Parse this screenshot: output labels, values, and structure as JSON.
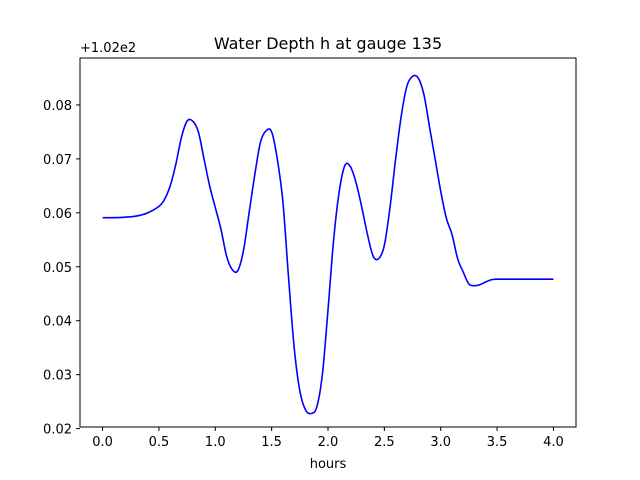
{
  "chart_data": {
    "type": "line",
    "title": "Water Depth h at gauge 135",
    "xlabel": "hours",
    "ylabel": "",
    "y_offset_label": "+1.02e2",
    "xlim": [
      -0.2,
      4.2
    ],
    "ylim": [
      0.0203,
      0.0887
    ],
    "xticks": [
      0.0,
      0.5,
      1.0,
      1.5,
      2.0,
      2.5,
      3.0,
      3.5,
      4.0
    ],
    "xtick_labels": [
      "0.0",
      "0.5",
      "1.0",
      "1.5",
      "2.0",
      "2.5",
      "3.0",
      "3.5",
      "4.0"
    ],
    "yticks": [
      0.02,
      0.03,
      0.04,
      0.05,
      0.06,
      0.07,
      0.08
    ],
    "ytick_labels": [
      "0.02",
      "0.03",
      "0.04",
      "0.05",
      "0.06",
      "0.07",
      "0.08"
    ],
    "grid": false,
    "series": [
      {
        "color": "#0000ff",
        "x": [
          0.0,
          0.1,
          0.2,
          0.3,
          0.4,
          0.5,
          0.55,
          0.6,
          0.65,
          0.7,
          0.75,
          0.8,
          0.85,
          0.9,
          0.95,
          1.0,
          1.05,
          1.1,
          1.15,
          1.2,
          1.25,
          1.3,
          1.35,
          1.4,
          1.45,
          1.5,
          1.55,
          1.6,
          1.65,
          1.7,
          1.75,
          1.8,
          1.85,
          1.9,
          1.95,
          2.0,
          2.05,
          2.1,
          2.15,
          2.2,
          2.25,
          2.3,
          2.35,
          2.4,
          2.45,
          2.5,
          2.55,
          2.6,
          2.65,
          2.7,
          2.75,
          2.8,
          2.85,
          2.9,
          2.95,
          3.0,
          3.05,
          3.1,
          3.15,
          3.2,
          3.25,
          3.3,
          3.35,
          3.4,
          3.45,
          3.5,
          3.55,
          3.6,
          3.65,
          3.7,
          3.75,
          3.8,
          3.85,
          3.9,
          3.95,
          4.0
        ],
        "y": [
          0.0591,
          0.0591,
          0.0592,
          0.0594,
          0.06,
          0.0612,
          0.0625,
          0.065,
          0.069,
          0.074,
          0.077,
          0.077,
          0.075,
          0.07,
          0.065,
          0.061,
          0.057,
          0.052,
          0.0495,
          0.0493,
          0.053,
          0.06,
          0.067,
          0.073,
          0.0752,
          0.075,
          0.07,
          0.062,
          0.048,
          0.035,
          0.027,
          0.0235,
          0.0228,
          0.024,
          0.03,
          0.042,
          0.055,
          0.064,
          0.0688,
          0.0685,
          0.0655,
          0.061,
          0.056,
          0.052,
          0.0515,
          0.054,
          0.061,
          0.07,
          0.078,
          0.0835,
          0.0853,
          0.085,
          0.082,
          0.076,
          0.07,
          0.064,
          0.059,
          0.056,
          0.0515,
          0.049,
          0.0468,
          0.0465,
          0.0467,
          0.0472,
          0.0476,
          0.0477,
          0.0477,
          0.0477,
          0.0477,
          0.0477,
          0.0477,
          0.0477,
          0.0477,
          0.0477,
          0.0477,
          0.0477
        ]
      }
    ]
  }
}
